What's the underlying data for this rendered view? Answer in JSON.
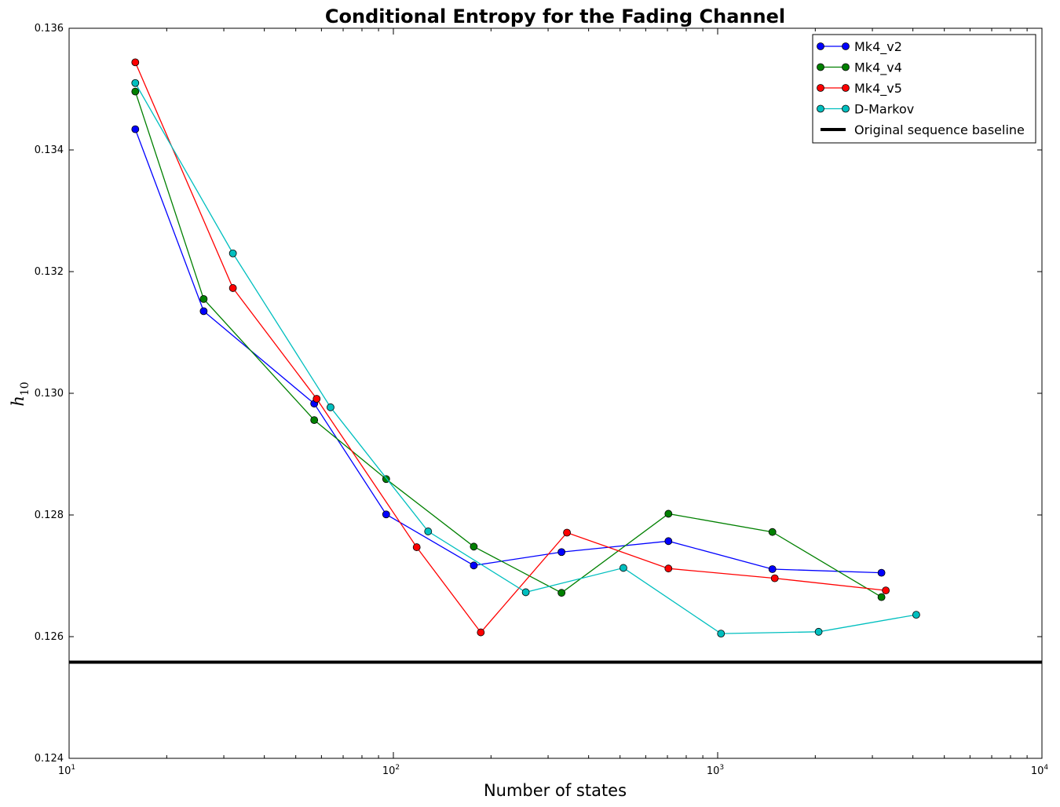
{
  "chart_data": {
    "type": "line",
    "title": "Conditional Entropy for the Fading Channel",
    "xlabel": "Number of states",
    "ylabel": {
      "symbol": "h",
      "subscript": "10"
    },
    "xscale": "log",
    "xlim": [
      10,
      10000
    ],
    "ylim": [
      0.124,
      0.136
    ],
    "xticks": [
      {
        "base": "10",
        "exp": "1",
        "value": 10
      },
      {
        "base": "10",
        "exp": "2",
        "value": 100
      },
      {
        "base": "10",
        "exp": "3",
        "value": 1000
      },
      {
        "base": "10",
        "exp": "4",
        "value": 10000
      }
    ],
    "yticks": [
      {
        "label": "0.124",
        "value": 0.124
      },
      {
        "label": "0.126",
        "value": 0.126
      },
      {
        "label": "0.128",
        "value": 0.128
      },
      {
        "label": "0.130",
        "value": 0.13
      },
      {
        "label": "0.132",
        "value": 0.132
      },
      {
        "label": "0.134",
        "value": 0.134
      },
      {
        "label": "0.136",
        "value": 0.136
      }
    ],
    "grid": false,
    "legend_position": "top-right",
    "series": [
      {
        "name": "Mk4_v2",
        "color": "#0000ff",
        "x": [
          16,
          26,
          57,
          95,
          177,
          330,
          705,
          1475,
          3200
        ],
        "y": [
          0.13434,
          0.13135,
          0.12983,
          0.12801,
          0.12717,
          0.12739,
          0.12757,
          0.12711,
          0.12705
        ]
      },
      {
        "name": "Mk4_v4",
        "color": "#008000",
        "x": [
          16,
          26,
          57,
          95,
          177,
          330,
          705,
          1475,
          3200
        ],
        "y": [
          0.13496,
          0.13155,
          0.12956,
          0.12859,
          0.12748,
          0.12672,
          0.12802,
          0.12772,
          0.12665
        ]
      },
      {
        "name": "Mk4_v5",
        "color": "#ff0000",
        "x": [
          16,
          32,
          58,
          118,
          186,
          343,
          705,
          1500,
          3300
        ],
        "y": [
          0.13544,
          0.13173,
          0.12991,
          0.12747,
          0.12607,
          0.12771,
          0.12712,
          0.12696,
          0.12676
        ]
      },
      {
        "name": "D-Markov",
        "color": "#00bfbf",
        "x": [
          16,
          32,
          64,
          128,
          256,
          512,
          1024,
          2048,
          4096
        ],
        "y": [
          0.1351,
          0.1323,
          0.12977,
          0.12773,
          0.12673,
          0.12713,
          0.12605,
          0.12608,
          0.12636
        ]
      }
    ],
    "baseline": {
      "name": "Original sequence baseline",
      "color": "#000000",
      "y": 0.12558
    }
  }
}
